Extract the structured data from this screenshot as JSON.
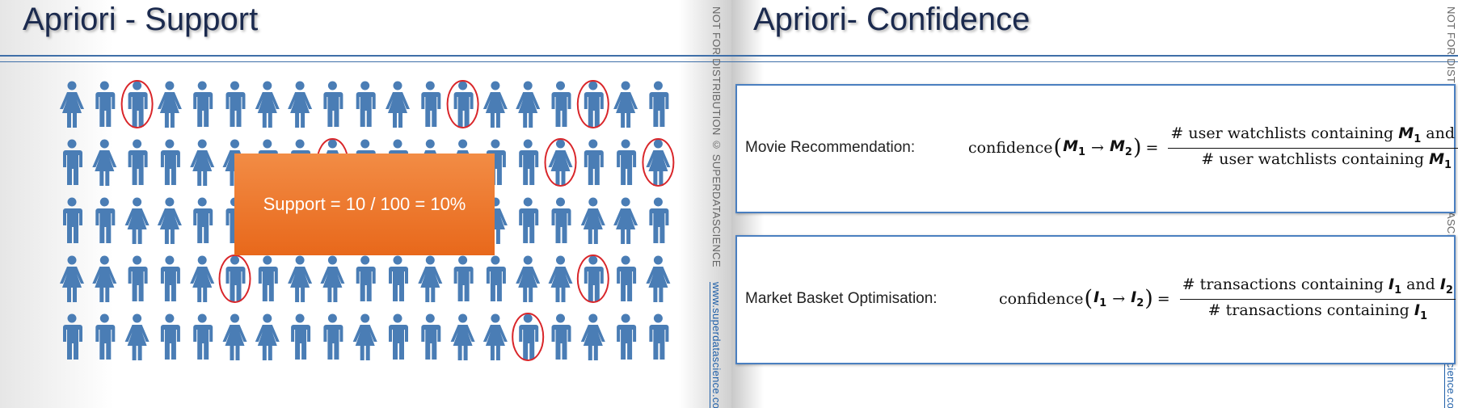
{
  "slides": [
    {
      "title": "Apriori - Support",
      "callout": "Support = 10 / 100 = 10%",
      "watermark": {
        "notice": "NOT FOR DISTRIBUTION © SUPERDATASCIENCE",
        "url": "www.superdatascience.com"
      }
    },
    {
      "title": "Apriori- Confidence",
      "watermark": {
        "notice": "NOT FOR DISTRIBUTION © SUPERDATASCIENCE",
        "url": "www.superdatascience.com"
      },
      "rows": [
        {
          "label": "Movie Recommendation:",
          "function": "confidence",
          "open": "(",
          "close": ")",
          "arrow": "→",
          "equals": "=",
          "antecedent": {
            "symbol": "M",
            "index": "1"
          },
          "consequent": {
            "symbol": "M",
            "index": "2"
          },
          "numerator": "# user watchlists containing",
          "conjunction": "and",
          "denominator": "# user watchlists containing"
        },
        {
          "label": "Market Basket Optimisation:",
          "function": "confidence",
          "open": "(",
          "close": ")",
          "arrow": "→",
          "equals": "=",
          "antecedent": {
            "symbol": "I",
            "index": "1"
          },
          "consequent": {
            "symbol": "I",
            "index": "2"
          },
          "numerator": "# transactions containing",
          "conjunction": "and",
          "denominator": "# transactions containing"
        }
      ]
    }
  ]
}
